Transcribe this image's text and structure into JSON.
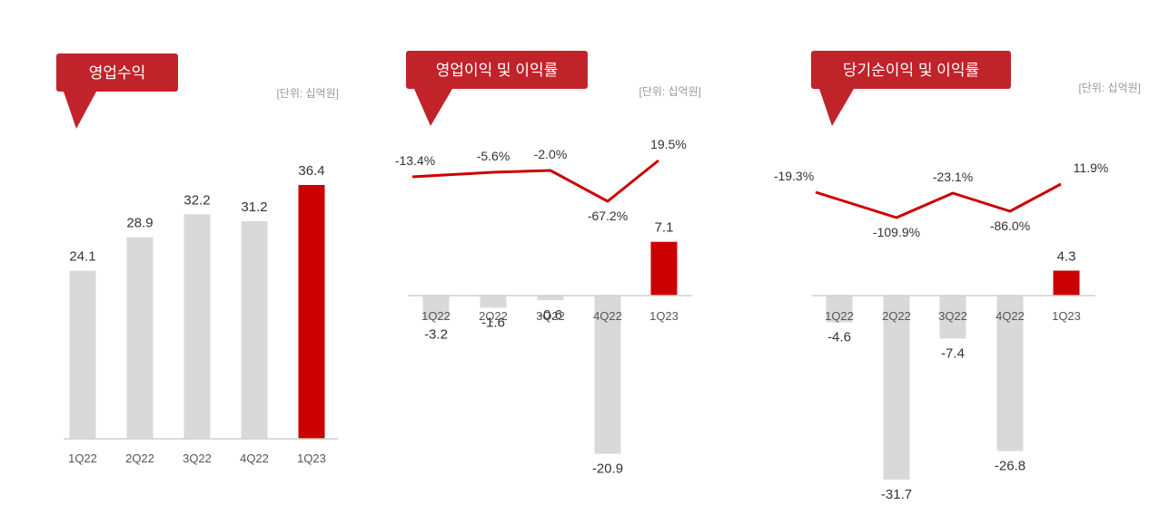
{
  "colors": {
    "accent": "#cc0000",
    "bar": "#d9d9d9",
    "callout": "#c0232a",
    "text": "#333333",
    "unit": "#999999"
  },
  "chart_data": [
    {
      "type": "bar",
      "title": "영업수익",
      "unit": "[단위: 십억원]",
      "categories": [
        "1Q22",
        "2Q22",
        "3Q22",
        "4Q22",
        "1Q23"
      ],
      "values": [
        24.1,
        28.9,
        32.2,
        31.2,
        36.4
      ],
      "value_labels": [
        "24.1",
        "28.9",
        "32.2",
        "31.2",
        "36.4"
      ],
      "highlight_index": 4,
      "ylim": [
        0,
        36.4
      ]
    },
    {
      "type": "bar+line",
      "title": "영업이익 및 이익률",
      "unit": "[단위: 십억원]",
      "categories": [
        "1Q22",
        "2Q22",
        "3Q22",
        "4Q22",
        "1Q23"
      ],
      "values": [
        -3.2,
        -1.6,
        -0.6,
        -20.9,
        7.1
      ],
      "value_labels": [
        "-3.2",
        "-1.6",
        "-0.6",
        "-20.9",
        "7.1"
      ],
      "margin": [
        -13.4,
        -5.6,
        -2.0,
        -67.2,
        19.5
      ],
      "margin_labels": [
        "-13.4%",
        "-5.6%",
        "-2.0%",
        "-67.2%",
        "19.5%"
      ],
      "highlight_index": 4
    },
    {
      "type": "bar+line",
      "title": "당기순이익 및 이익률",
      "unit": "[단위: 십억원]",
      "categories": [
        "1Q22",
        "2Q22",
        "3Q22",
        "4Q22",
        "1Q23"
      ],
      "values": [
        -4.6,
        -31.7,
        -7.4,
        -26.8,
        4.3
      ],
      "value_labels": [
        "-4.6",
        "-31.7",
        "-7.4",
        "-26.8",
        "4.3"
      ],
      "margin": [
        -19.3,
        -109.9,
        -23.1,
        -86.0,
        11.9
      ],
      "margin_labels": [
        "-19.3%",
        "-109.9%",
        "-23.1%",
        "-86.0%",
        "11.9%"
      ],
      "highlight_index": 4
    }
  ]
}
